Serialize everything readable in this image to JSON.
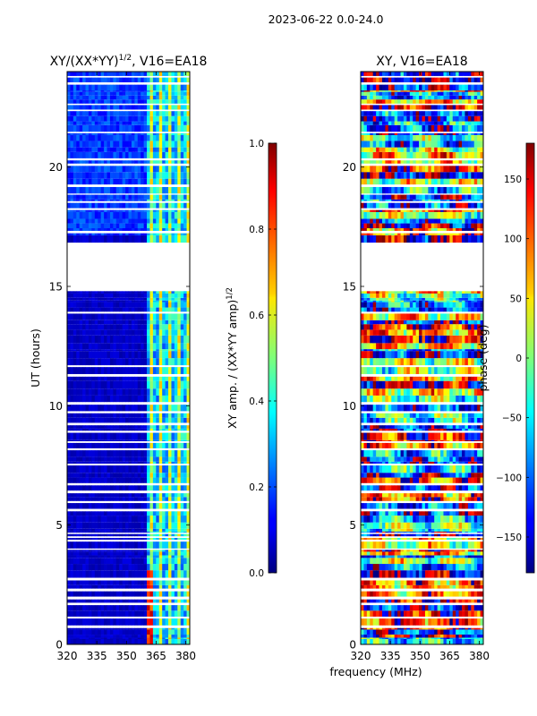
{
  "figure_title": "2023-06-22 0.0-24.0",
  "chart_data": [
    {
      "type": "heatmap",
      "title": "XY/(XX*YY)^{1/2}, V16=EA18",
      "title_main": "XY/(XX*YY)",
      "title_sup": "1/2",
      "title_rest": ", V16=EA18",
      "xlabel": "",
      "ylabel": "UT (hours)",
      "xlim": [
        320,
        382
      ],
      "ylim": [
        0,
        24
      ],
      "xticks": [
        320,
        335,
        350,
        365,
        380
      ],
      "yticks": [
        0,
        5,
        10,
        15,
        20
      ],
      "data_gap_hours": [
        14.8,
        16.8
      ],
      "colorbar": {
        "label": "XY amp. / (XX*YY amp)^{1/2}",
        "label_main": "XY amp. / (XX*YY amp)",
        "label_sup": "1/2",
        "range": [
          0.0,
          1.0
        ],
        "ticks": [
          "0.0",
          "0.2",
          "0.4",
          "0.6",
          "0.8",
          "1.0"
        ],
        "colormap": "jet"
      },
      "description_values": "mostly low amplitude (~0.05) with elevated values (~0.3-0.7) in channels near 362-380 MHz"
    },
    {
      "type": "heatmap",
      "title": "XY, V16=EA18",
      "xlabel": "frequency (MHz)",
      "ylabel": "",
      "xlim": [
        320,
        382
      ],
      "ylim": [
        0,
        24
      ],
      "xticks": [
        320,
        335,
        350,
        365,
        380
      ],
      "yticks": [
        0,
        5,
        10,
        15,
        20
      ],
      "data_gap_hours": [
        14.8,
        16.8
      ],
      "colorbar": {
        "label": "phase (deg)",
        "range": [
          -180,
          180
        ],
        "ticks": [
          "150",
          "100",
          "50",
          "0",
          "−50",
          "−100",
          "−150"
        ],
        "tick_values": [
          150,
          100,
          50,
          0,
          -50,
          -100,
          -150
        ],
        "colormap": "jet"
      }
    }
  ]
}
